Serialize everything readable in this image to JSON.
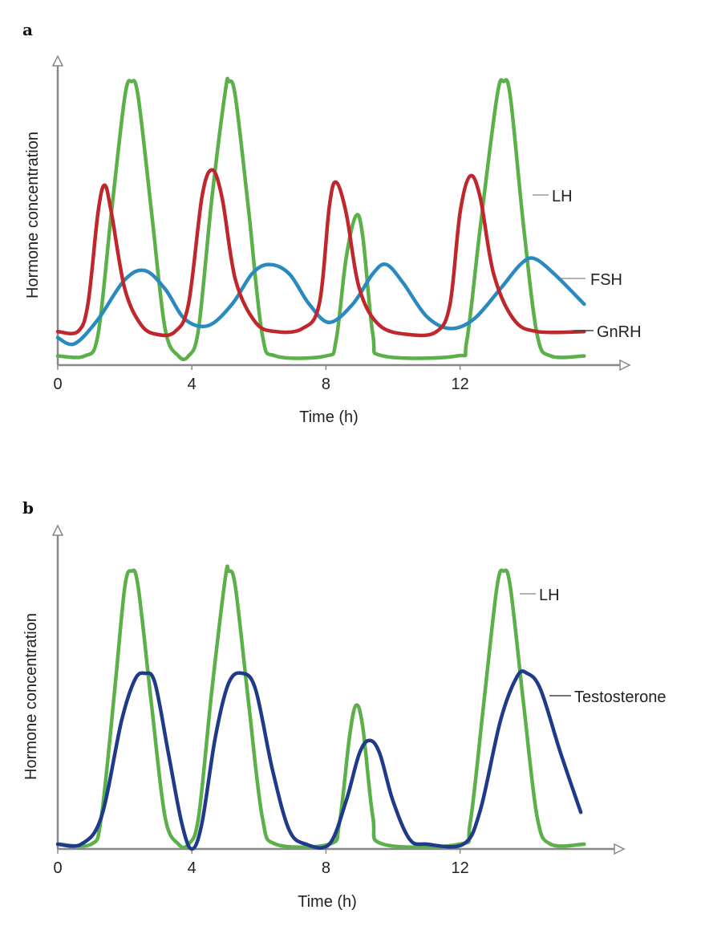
{
  "chart_data": [
    {
      "type": "line",
      "panel_label": "a",
      "xlabel": "Time (h)",
      "ylabel": "Hormone concentration",
      "xlim": [
        0,
        16.5
      ],
      "ylim": [
        0,
        1
      ],
      "xticks": [
        0,
        4,
        8,
        12
      ],
      "grid": false,
      "legend": "inline labels at right end of series",
      "series": [
        {
          "name": "LH",
          "color": "#5cb04a",
          "points": [
            [
              0,
              0.03
            ],
            [
              0.8,
              0.03
            ],
            [
              1.2,
              0.1
            ],
            [
              1.6,
              0.5
            ],
            [
              2.0,
              0.88
            ],
            [
              2.2,
              0.93
            ],
            [
              2.4,
              0.88
            ],
            [
              2.8,
              0.5
            ],
            [
              3.2,
              0.12
            ],
            [
              3.6,
              0.03
            ],
            [
              3.9,
              0.03
            ],
            [
              4.2,
              0.12
            ],
            [
              4.6,
              0.55
            ],
            [
              5.0,
              0.9
            ],
            [
              5.1,
              0.93
            ],
            [
              5.3,
              0.88
            ],
            [
              5.7,
              0.5
            ],
            [
              6.1,
              0.1
            ],
            [
              6.5,
              0.03
            ],
            [
              8.0,
              0.03
            ],
            [
              8.3,
              0.08
            ],
            [
              8.6,
              0.35
            ],
            [
              8.9,
              0.49
            ],
            [
              9.1,
              0.42
            ],
            [
              9.4,
              0.1
            ],
            [
              9.7,
              0.03
            ],
            [
              11.9,
              0.03
            ],
            [
              12.2,
              0.08
            ],
            [
              12.6,
              0.45
            ],
            [
              13.1,
              0.88
            ],
            [
              13.3,
              0.93
            ],
            [
              13.5,
              0.88
            ],
            [
              13.9,
              0.45
            ],
            [
              14.3,
              0.1
            ],
            [
              14.7,
              0.03
            ],
            [
              15.7,
              0.03
            ]
          ]
        },
        {
          "name": "FSH",
          "color": "#2a8ac0",
          "points": [
            [
              0,
              0.09
            ],
            [
              0.5,
              0.07
            ],
            [
              1.2,
              0.15
            ],
            [
              2.0,
              0.28
            ],
            [
              2.6,
              0.31
            ],
            [
              3.2,
              0.25
            ],
            [
              3.8,
              0.15
            ],
            [
              4.5,
              0.13
            ],
            [
              5.2,
              0.2
            ],
            [
              5.8,
              0.3
            ],
            [
              6.3,
              0.33
            ],
            [
              6.9,
              0.3
            ],
            [
              7.5,
              0.2
            ],
            [
              8.1,
              0.14
            ],
            [
              8.8,
              0.2
            ],
            [
              9.4,
              0.3
            ],
            [
              9.8,
              0.33
            ],
            [
              10.3,
              0.27
            ],
            [
              11.0,
              0.16
            ],
            [
              11.7,
              0.12
            ],
            [
              12.4,
              0.15
            ],
            [
              13.2,
              0.25
            ],
            [
              13.8,
              0.33
            ],
            [
              14.2,
              0.35
            ],
            [
              14.8,
              0.3
            ],
            [
              15.7,
              0.2
            ]
          ]
        },
        {
          "name": "GnRH",
          "color": "#c0272d",
          "points": [
            [
              0,
              0.11
            ],
            [
              0.6,
              0.11
            ],
            [
              0.9,
              0.2
            ],
            [
              1.2,
              0.5
            ],
            [
              1.4,
              0.59
            ],
            [
              1.6,
              0.5
            ],
            [
              2.0,
              0.25
            ],
            [
              2.5,
              0.13
            ],
            [
              3.0,
              0.1
            ],
            [
              3.5,
              0.11
            ],
            [
              3.9,
              0.2
            ],
            [
              4.3,
              0.55
            ],
            [
              4.6,
              0.64
            ],
            [
              4.9,
              0.55
            ],
            [
              5.3,
              0.28
            ],
            [
              5.9,
              0.14
            ],
            [
              6.5,
              0.11
            ],
            [
              7.3,
              0.12
            ],
            [
              7.8,
              0.2
            ],
            [
              8.1,
              0.52
            ],
            [
              8.3,
              0.6
            ],
            [
              8.6,
              0.5
            ],
            [
              9.0,
              0.25
            ],
            [
              9.6,
              0.13
            ],
            [
              10.5,
              0.1
            ],
            [
              11.3,
              0.11
            ],
            [
              11.7,
              0.2
            ],
            [
              12.0,
              0.5
            ],
            [
              12.3,
              0.62
            ],
            [
              12.6,
              0.55
            ],
            [
              13.0,
              0.3
            ],
            [
              13.6,
              0.15
            ],
            [
              14.3,
              0.11
            ],
            [
              15.7,
              0.11
            ]
          ]
        }
      ]
    },
    {
      "type": "line",
      "panel_label": "b",
      "xlabel": "Time (h)",
      "ylabel": "Hormone concentration",
      "xlim": [
        0,
        16.5
      ],
      "ylim": [
        0,
        1
      ],
      "xticks": [
        0,
        4,
        8,
        12
      ],
      "grid": false,
      "legend": "inline labels at right end of series",
      "series": [
        {
          "name": "LH",
          "color": "#5cb04a",
          "points": [
            [
              0,
              0.015
            ],
            [
              1.0,
              0.015
            ],
            [
              1.3,
              0.1
            ],
            [
              1.7,
              0.5
            ],
            [
              2.0,
              0.82
            ],
            [
              2.2,
              0.87
            ],
            [
              2.4,
              0.82
            ],
            [
              2.8,
              0.45
            ],
            [
              3.2,
              0.1
            ],
            [
              3.6,
              0.015
            ],
            [
              3.9,
              0.015
            ],
            [
              4.2,
              0.1
            ],
            [
              4.6,
              0.5
            ],
            [
              5.0,
              0.85
            ],
            [
              5.1,
              0.87
            ],
            [
              5.3,
              0.82
            ],
            [
              5.7,
              0.45
            ],
            [
              6.1,
              0.1
            ],
            [
              6.5,
              0.015
            ],
            [
              8.1,
              0.015
            ],
            [
              8.4,
              0.08
            ],
            [
              8.7,
              0.35
            ],
            [
              8.9,
              0.45
            ],
            [
              9.1,
              0.38
            ],
            [
              9.4,
              0.1
            ],
            [
              9.7,
              0.015
            ],
            [
              12.0,
              0.015
            ],
            [
              12.3,
              0.08
            ],
            [
              12.7,
              0.45
            ],
            [
              13.1,
              0.82
            ],
            [
              13.3,
              0.87
            ],
            [
              13.5,
              0.82
            ],
            [
              13.9,
              0.45
            ],
            [
              14.3,
              0.1
            ],
            [
              14.7,
              0.015
            ],
            [
              15.7,
              0.015
            ]
          ]
        },
        {
          "name": "Testosterone",
          "color": "#1f3a8a",
          "points": [
            [
              0,
              0.015
            ],
            [
              0.7,
              0.015
            ],
            [
              1.3,
              0.1
            ],
            [
              1.9,
              0.4
            ],
            [
              2.3,
              0.53
            ],
            [
              2.6,
              0.55
            ],
            [
              2.9,
              0.52
            ],
            [
              3.3,
              0.3
            ],
            [
              3.7,
              0.08
            ],
            [
              4.0,
              0.0
            ],
            [
              4.3,
              0.08
            ],
            [
              4.7,
              0.35
            ],
            [
              5.1,
              0.52
            ],
            [
              5.5,
              0.55
            ],
            [
              5.9,
              0.5
            ],
            [
              6.4,
              0.25
            ],
            [
              6.9,
              0.06
            ],
            [
              7.4,
              0.015
            ],
            [
              8.1,
              0.015
            ],
            [
              8.6,
              0.15
            ],
            [
              9.0,
              0.3
            ],
            [
              9.3,
              0.34
            ],
            [
              9.6,
              0.3
            ],
            [
              10.0,
              0.15
            ],
            [
              10.5,
              0.03
            ],
            [
              11.0,
              0.015
            ],
            [
              12.1,
              0.015
            ],
            [
              12.6,
              0.12
            ],
            [
              13.2,
              0.4
            ],
            [
              13.7,
              0.54
            ],
            [
              14.0,
              0.55
            ],
            [
              14.4,
              0.5
            ],
            [
              15.0,
              0.3
            ],
            [
              15.6,
              0.115
            ]
          ]
        }
      ]
    }
  ]
}
